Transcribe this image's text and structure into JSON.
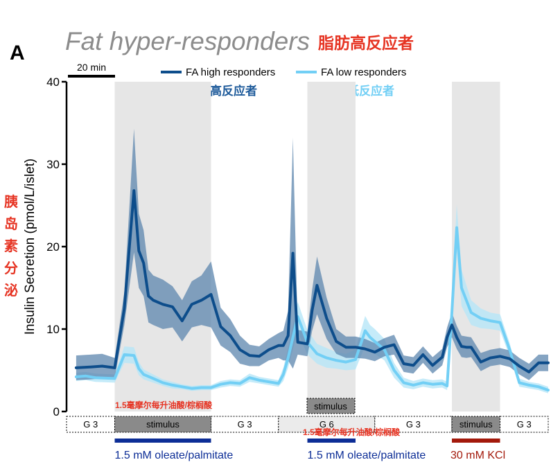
{
  "panel_letter": "A",
  "title": "Fat hyper-responders",
  "title_zh": "脂肪高反应者",
  "colors": {
    "high": "#0d4d8b",
    "high_band": "#5c86ad",
    "low": "#72cff5",
    "low_band": "#b6e6f8",
    "shade": "#e6e6e6",
    "red_label": "#e63322",
    "oleate_bar": "#0c2d96",
    "kcl_bar": "#a3190b",
    "grey_box": "#8a8a8a",
    "light_box": "#ebebeb"
  },
  "scale_bar_label": "20 min",
  "y_axis_label_zh": "胰岛素分泌",
  "bottom_label_zh": "1.5毫摩尔每升油酸/棕榈酸",
  "float_stimulus_label": "stimulus",
  "segments": [
    {
      "label": "G 3",
      "x": [
        0,
        5
      ]
    },
    {
      "label": "stimulus",
      "x": [
        5,
        15
      ]
    },
    {
      "label": "G 3",
      "x": [
        15,
        22
      ]
    },
    {
      "label": "G 6",
      "x": [
        22,
        32
      ]
    },
    {
      "label": "G 3",
      "x": [
        32,
        40
      ]
    },
    {
      "label": "stimulus",
      "x": [
        40,
        45
      ]
    },
    {
      "label": "G 3",
      "x": [
        45,
        50
      ]
    }
  ],
  "treatments": [
    {
      "label": "1.5 mM oleate/palmitate",
      "x": [
        5,
        15
      ],
      "color_key": "oleate_bar"
    },
    {
      "label": "1.5 mM oleate/palmitate",
      "x": [
        25,
        30
      ],
      "color_key": "oleate_bar"
    },
    {
      "label": "30 mM KCl",
      "x": [
        40,
        45
      ],
      "color_key": "kcl_bar"
    }
  ],
  "chart_data": {
    "type": "line",
    "title": "Fat hyper-responders",
    "xlabel": "",
    "ylabel": "Insulin Secretion (pmol/L/islet)",
    "ylim": [
      0,
      40
    ],
    "yticks": [
      0,
      10,
      20,
      30,
      40
    ],
    "xlim": [
      0,
      50
    ],
    "grid": false,
    "legend_position": "top",
    "shaded_regions": [
      [
        5,
        15
      ],
      [
        25,
        30
      ],
      [
        40,
        45
      ]
    ],
    "series": [
      {
        "name": "FA high responders",
        "name_zh": "脂肪高反应者",
        "x": [
          1,
          2.5,
          3.7,
          5,
          6,
          7,
          7.5,
          8,
          8.5,
          9,
          10,
          11,
          12,
          13,
          14,
          15,
          16,
          17,
          18,
          19,
          20,
          21,
          22,
          22.5,
          23,
          23.5,
          24,
          25,
          25.5,
          26,
          27,
          28,
          29,
          30,
          31,
          32,
          33,
          34,
          35,
          36,
          37,
          38,
          39,
          39.5,
          40,
          40.5,
          41,
          41.5,
          42,
          43,
          44,
          45,
          46,
          47,
          48,
          49,
          50
        ],
        "y": [
          5.3,
          5.4,
          5.5,
          5.3,
          12.5,
          26.8,
          19.5,
          18,
          14,
          13.5,
          13,
          12.7,
          11,
          13,
          13.5,
          14.2,
          10.3,
          9.2,
          7.5,
          6.8,
          6.7,
          7.5,
          8,
          8,
          9.2,
          19.2,
          8.4,
          8.2,
          12.3,
          15.3,
          11.3,
          8.5,
          7.8,
          7.8,
          7.6,
          7.2,
          7.8,
          8.1,
          5.8,
          5.6,
          6.9,
          5.6,
          6.6,
          9,
          10.5,
          9,
          7.9,
          7.8,
          7.8,
          6,
          6.5,
          6.7,
          6.4,
          5.5,
          4.8,
          5.9,
          5.9
        ],
        "band": [
          1.5,
          1.5,
          1.5,
          1.2,
          2,
          7.5,
          4.5,
          4,
          3.2,
          3,
          3,
          2.5,
          2.5,
          2.8,
          3,
          4,
          2.3,
          2,
          1.7,
          1.3,
          1.2,
          1.3,
          1.5,
          1.8,
          3,
          14,
          1.5,
          1.5,
          2.5,
          3.5,
          2.5,
          1.5,
          1.3,
          1.3,
          1.2,
          1.1,
          1.1,
          1.2,
          1,
          1,
          1,
          1,
          1,
          1.2,
          1.5,
          1.4,
          1.3,
          1.3,
          1.2,
          1.1,
          1,
          1,
          1,
          1,
          1,
          1,
          1
        ]
      },
      {
        "name": "FA low responders",
        "name_zh": "脂肪低反应者",
        "x": [
          1,
          2,
          3,
          5,
          6,
          7,
          7.5,
          8,
          9,
          10,
          11,
          12,
          13,
          14,
          15,
          16,
          17,
          18,
          19,
          20,
          21,
          22,
          22.5,
          23,
          24,
          25,
          26,
          27,
          28,
          29,
          30,
          31,
          31.5,
          32,
          33,
          34,
          35,
          36,
          37,
          38,
          39,
          39.5,
          40,
          40.5,
          41,
          42,
          43,
          44,
          45,
          46,
          47,
          48,
          49,
          50
        ],
        "y": [
          4.2,
          4.3,
          4.1,
          4,
          6.9,
          6.8,
          5.2,
          4.5,
          4,
          3.5,
          3.2,
          3,
          2.8,
          2.9,
          2.9,
          3.3,
          3.5,
          3.4,
          4.1,
          3.8,
          3.6,
          3.4,
          4.5,
          6.5,
          11.5,
          8.4,
          7,
          6.5,
          6.2,
          6,
          6.3,
          9.8,
          9,
          8.5,
          7.5,
          5,
          3.5,
          3.2,
          3.5,
          3.3,
          3.4,
          3.1,
          12,
          22.3,
          15,
          12,
          11.3,
          11,
          10.8,
          7.5,
          3.5,
          3.2,
          3,
          2.6
        ],
        "band": [
          0.5,
          0.5,
          0.5,
          0.5,
          1,
          1,
          0.8,
          0.6,
          0.5,
          0.4,
          0.4,
          0.3,
          0.3,
          0.3,
          0.3,
          0.4,
          0.4,
          0.4,
          0.5,
          0.4,
          0.4,
          0.4,
          0.8,
          1.2,
          1.8,
          1.5,
          1.2,
          1.2,
          1,
          1,
          1.2,
          1.8,
          1.5,
          1.5,
          1.3,
          0.9,
          0.6,
          0.5,
          0.5,
          0.5,
          0.5,
          0.5,
          2,
          2.8,
          2.2,
          1.5,
          1.2,
          1,
          1,
          0.8,
          0.5,
          0.4,
          0.4,
          0.4
        ]
      }
    ]
  }
}
